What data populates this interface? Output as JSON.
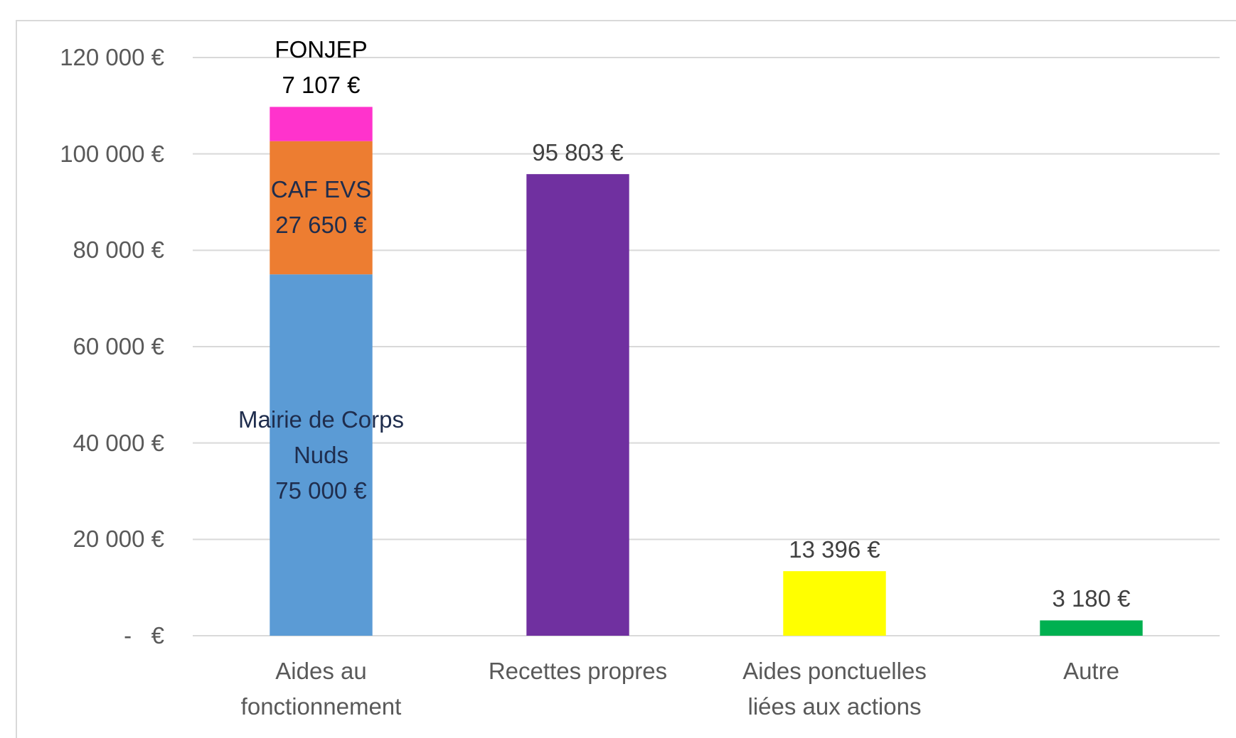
{
  "chart_data": {
    "type": "stacked_bar",
    "categories": [
      "Aides au fonctionnement",
      "Recettes propres",
      "Aides ponctuelles liées aux actions",
      "Autre"
    ],
    "series": [
      {
        "name": "Mairie de Corps Nuds",
        "color": "#5b9bd5",
        "values": [
          75000,
          null,
          null,
          null
        ],
        "value_labels": [
          "75 000 €",
          null,
          null,
          null
        ]
      },
      {
        "name": "CAF EVS",
        "color": "#ed7d31",
        "values": [
          27650,
          null,
          null,
          null
        ],
        "value_labels": [
          "27 650 €",
          null,
          null,
          null
        ]
      },
      {
        "name": "FONJEP",
        "color": "#ff33cc",
        "values": [
          7107,
          null,
          null,
          null
        ],
        "value_labels": [
          "7 107 €",
          null,
          null,
          null
        ]
      },
      {
        "colors": [
          null,
          "#7030a0",
          "#ffff00",
          "#00b050"
        ],
        "values": [
          null,
          95803,
          13396,
          3180
        ],
        "value_labels": [
          null,
          "95 803 €",
          "13 396 €",
          "3 180 €"
        ]
      }
    ],
    "ylim": [
      0,
      120000
    ],
    "yticks": [
      {
        "value": 0,
        "label": "-   €"
      },
      {
        "value": 20000,
        "label": "20 000 €"
      },
      {
        "value": 40000,
        "label": "40 000 €"
      },
      {
        "value": 60000,
        "label": "60 000 €"
      },
      {
        "value": 80000,
        "label": "80 000 €"
      },
      {
        "value": 100000,
        "label": "100 000 €"
      },
      {
        "value": 120000,
        "label": "120 000 €"
      }
    ],
    "grid": true
  }
}
